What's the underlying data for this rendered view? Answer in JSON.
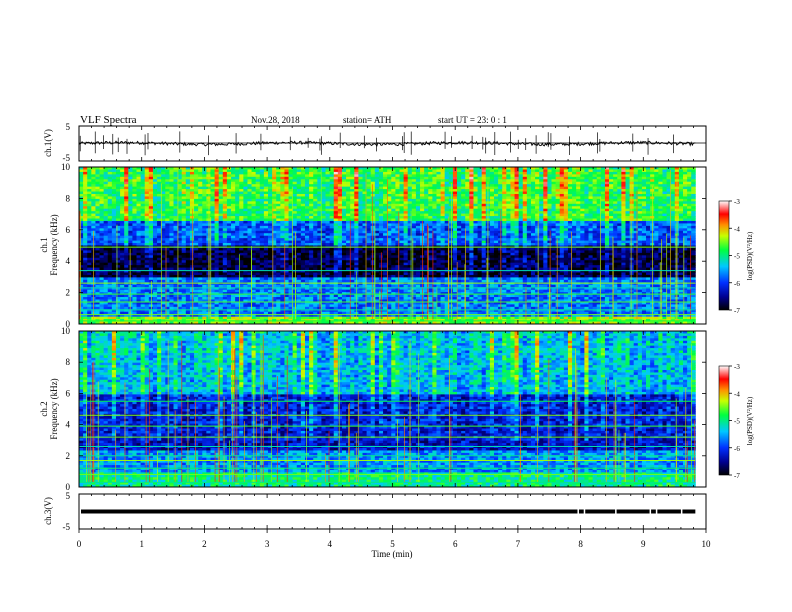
{
  "chart_data": {
    "type": "heatmap",
    "header": {
      "title": "VLF  Spectra",
      "date": "Nov.28, 2018",
      "station": "station= ATH",
      "start": "start  UT  =   23: 0  : 1"
    },
    "time_axis": {
      "label": "Time  (min)",
      "range": [
        0,
        10
      ],
      "ticks": [
        "0",
        "1",
        "2",
        "3",
        "4",
        "5",
        "6",
        "7",
        "8",
        "9",
        "10"
      ],
      "data_end": 9.83
    },
    "panels": [
      {
        "kind": "waveform",
        "ylabel": "ch.1(V)",
        "ylim": [
          -5,
          5
        ],
        "ticks": [
          "5",
          "-5"
        ],
        "trace_level": 0,
        "trace_color": "#000000"
      },
      {
        "kind": "spectrogram",
        "ylabel_channel": "ch.1",
        "ylabel": "Frequency  (kHz)",
        "ylim": [
          0,
          10
        ],
        "ticks": [
          "0",
          "2",
          "4",
          "6",
          "8",
          "10"
        ],
        "bands": [
          {
            "from": 0,
            "to": 0.5,
            "level": -4.5
          },
          {
            "from": 0.5,
            "to": 2.9,
            "level": -5.7
          },
          {
            "from": 2.9,
            "to": 5.0,
            "level": -6.9
          },
          {
            "from": 5.0,
            "to": 6.5,
            "level": -6.0
          },
          {
            "from": 6.5,
            "to": 10,
            "level": -5.0
          }
        ],
        "lines_khz": [
          0.2,
          0.6,
          0.9,
          1.4,
          1.9,
          2.3,
          2.6,
          3.4,
          4.9
        ],
        "colorbar": {
          "label": "log(PSD)(V²/Hz)",
          "range": [
            -7,
            -3
          ],
          "ticks": [
            "-3",
            "-4",
            "-5",
            "-6",
            "-7"
          ]
        }
      },
      {
        "kind": "spectrogram",
        "ylabel_channel": "ch.2",
        "ylabel": "Frequency  (kHz)",
        "ylim": [
          0,
          10
        ],
        "ticks": [
          "0",
          "2",
          "4",
          "6",
          "8",
          "10"
        ],
        "bands": [
          {
            "from": 0,
            "to": 1.0,
            "level": -5.0
          },
          {
            "from": 1.0,
            "to": 2.4,
            "level": -5.6
          },
          {
            "from": 2.4,
            "to": 6.0,
            "level": -6.3
          },
          {
            "from": 6.0,
            "to": 10,
            "level": -5.6
          }
        ],
        "lines_khz": [
          0.3,
          0.8,
          1.2,
          1.7,
          2.0,
          2.6,
          3.2,
          3.9,
          4.6,
          5.5
        ],
        "colorbar": {
          "label": "log(PSD)(V²/Hz)",
          "range": [
            -7,
            -3
          ],
          "ticks": [
            "-3",
            "-4",
            "-5",
            "-6",
            "-7"
          ]
        }
      },
      {
        "kind": "waveform",
        "ylabel": "ch.3(V)",
        "ylim": [
          -5,
          5
        ],
        "ticks": [
          "5",
          "-5"
        ],
        "trace_level": 0,
        "trace_color": "#000000"
      }
    ]
  }
}
